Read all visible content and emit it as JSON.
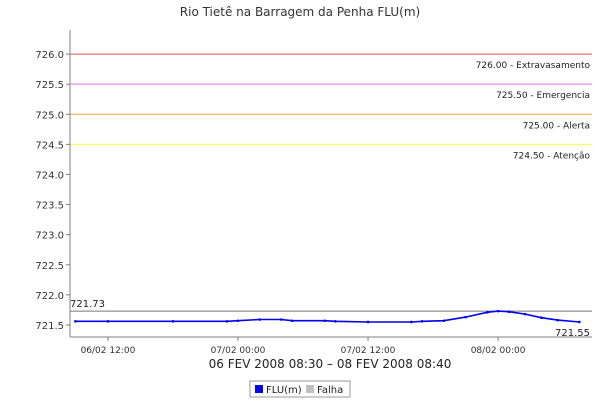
{
  "colors": {
    "series": "#0000ee",
    "falha": "#c0c0c0",
    "extravasamento": "#e05050",
    "emergencia": "#e070e0",
    "alerta": "#f0a040",
    "atencao": "#ffff40",
    "axis": "#808080",
    "grid": "#e0e0e0"
  },
  "chart_data": {
    "type": "line",
    "title": "Rio Tietê na Barragem da Penha FLU(m)",
    "xlabel": "06 FEV 2008 08:30 – 08 FEV 2008 08:40",
    "ylabel": "",
    "ylim": [
      721.3,
      726.4
    ],
    "xlim": [
      "2008-02-06 08:30",
      "2008-02-08 08:40"
    ],
    "yticks": [
      "721.5",
      "722.0",
      "722.5",
      "723.0",
      "723.5",
      "724.0",
      "724.5",
      "725.0",
      "725.5",
      "726.0"
    ],
    "xticks": [
      {
        "label": "06/02 12:00",
        "time": "2008-02-06 12:00"
      },
      {
        "label": "07/02 00:00",
        "time": "2008-02-07 00:00"
      },
      {
        "label": "07/02 12:00",
        "time": "2008-02-07 12:00"
      },
      {
        "label": "08/02 00:00",
        "time": "2008-02-08 00:00"
      }
    ],
    "grid": false,
    "legend_position": "bottom",
    "legend": [
      "FLU(m)",
      "Falha"
    ],
    "thresholds": [
      {
        "value": 726.0,
        "label": "726.00 - Extravasamento",
        "color_key": "extravasamento"
      },
      {
        "value": 725.5,
        "label": "725.50 - Emergencia",
        "color_key": "emergencia"
      },
      {
        "value": 725.0,
        "label": "725.00 - Alerta",
        "color_key": "alerta"
      },
      {
        "value": 724.5,
        "label": "724.50 - Atenção",
        "color_key": "atencao"
      }
    ],
    "max_marker": {
      "value": 721.73,
      "label": "721.73"
    },
    "last_value": {
      "value": 721.55,
      "label": "721.55"
    },
    "series": [
      {
        "name": "FLU(m)",
        "points": [
          {
            "t": "2008-02-06 09:00",
            "y": 721.56
          },
          {
            "t": "2008-02-06 12:00",
            "y": 721.56
          },
          {
            "t": "2008-02-06 18:00",
            "y": 721.56
          },
          {
            "t": "2008-02-06 23:00",
            "y": 721.56
          },
          {
            "t": "2008-02-07 00:00",
            "y": 721.57
          },
          {
            "t": "2008-02-07 02:00",
            "y": 721.59
          },
          {
            "t": "2008-02-07 04:00",
            "y": 721.59
          },
          {
            "t": "2008-02-07 05:00",
            "y": 721.57
          },
          {
            "t": "2008-02-07 08:00",
            "y": 721.57
          },
          {
            "t": "2008-02-07 09:00",
            "y": 721.56
          },
          {
            "t": "2008-02-07 12:00",
            "y": 721.55
          },
          {
            "t": "2008-02-07 16:00",
            "y": 721.55
          },
          {
            "t": "2008-02-07 17:00",
            "y": 721.56
          },
          {
            "t": "2008-02-07 19:00",
            "y": 721.57
          },
          {
            "t": "2008-02-07 21:00",
            "y": 721.63
          },
          {
            "t": "2008-02-07 23:00",
            "y": 721.71
          },
          {
            "t": "2008-02-08 00:00",
            "y": 721.73
          },
          {
            "t": "2008-02-08 01:00",
            "y": 721.72
          },
          {
            "t": "2008-02-08 02:30",
            "y": 721.68
          },
          {
            "t": "2008-02-08 04:00",
            "y": 721.62
          },
          {
            "t": "2008-02-08 05:30",
            "y": 721.58
          },
          {
            "t": "2008-02-08 07:30",
            "y": 721.55
          }
        ]
      }
    ]
  }
}
